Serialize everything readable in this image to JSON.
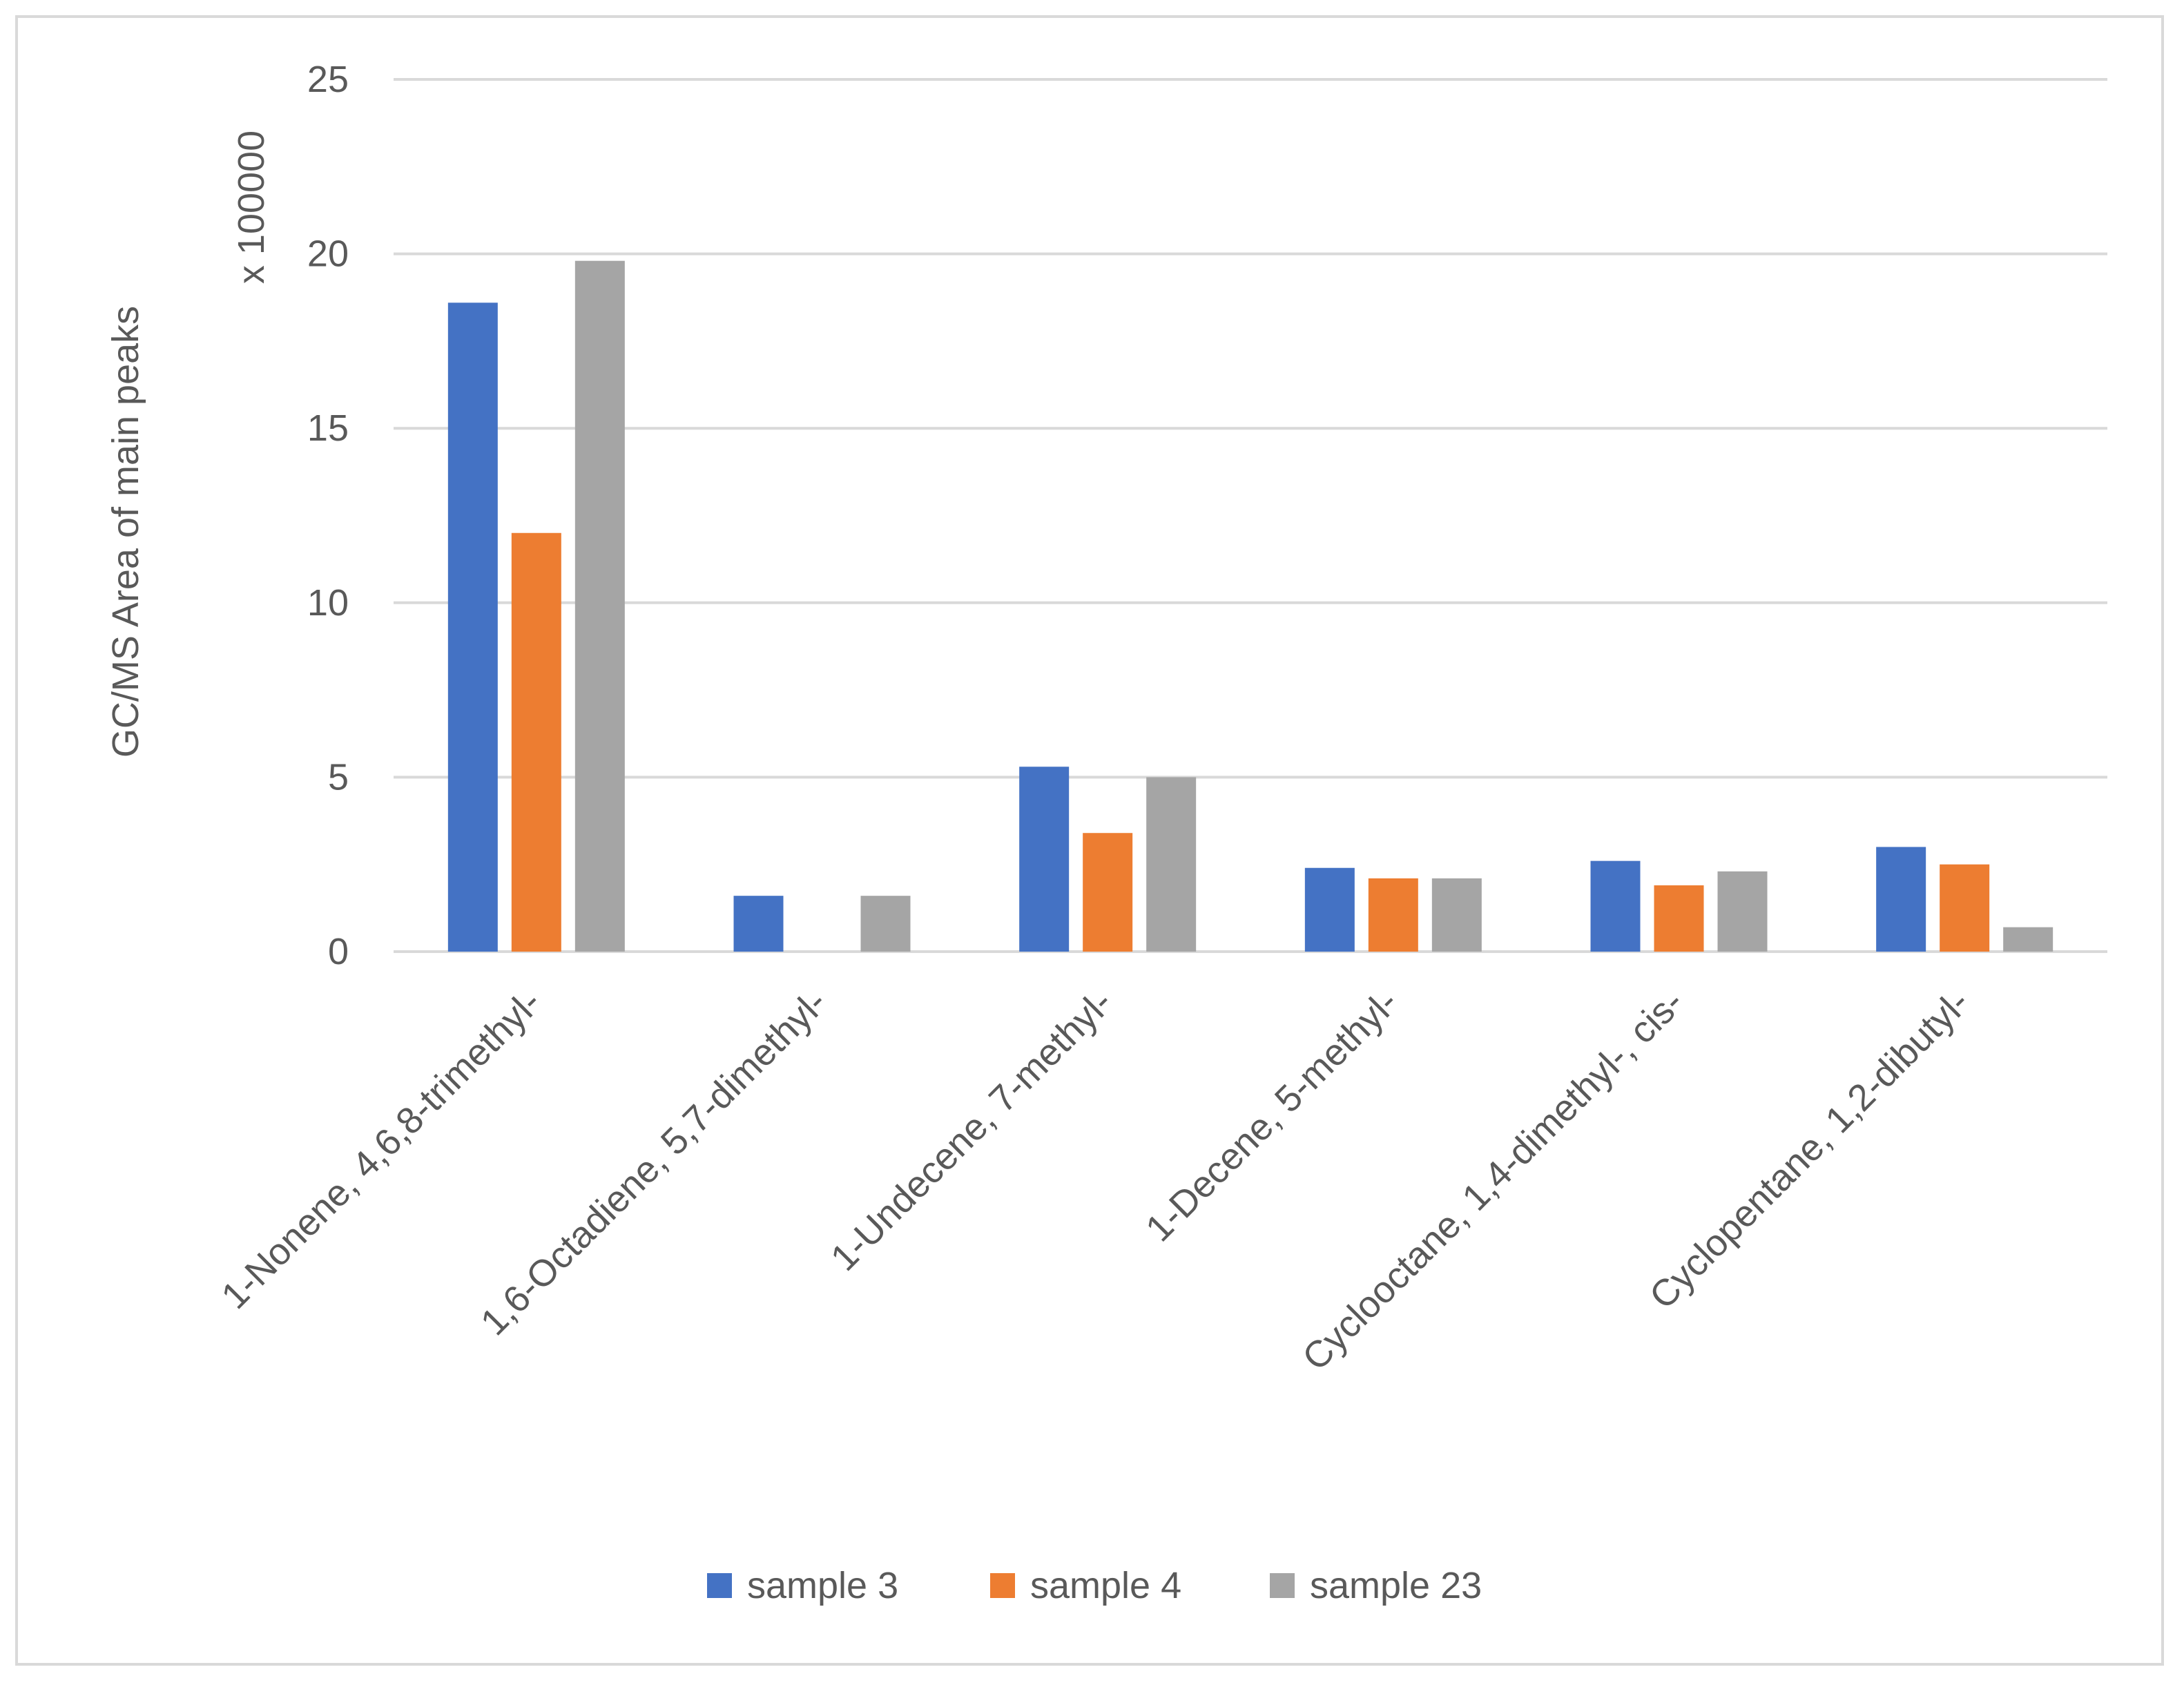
{
  "chart_data": {
    "type": "bar",
    "title": "",
    "xlabel": "",
    "ylabel": "GC/MS Area of main peaks",
    "y_multiplier_label": "x 100000",
    "ylim": [
      0,
      25
    ],
    "yticks": [
      0,
      5,
      10,
      15,
      20,
      25
    ],
    "grid": true,
    "legend_position": "bottom",
    "categories": [
      "1-Nonene, 4,6,8-trimethyl-",
      "1,6-Octadiene, 5,7-dimethyl-",
      "1-Undecene, 7-methyl-",
      "1-Decene, 5-methyl-",
      "Cyclooctane, 1,4-dimethyl-, cis-",
      "Cyclopentane, 1,2-dibutyl-"
    ],
    "series": [
      {
        "name": "sample 3",
        "color": "#4472c4",
        "values": [
          18.6,
          1.6,
          5.3,
          2.4,
          2.6,
          3.0
        ]
      },
      {
        "name": "sample 4",
        "color": "#ed7d31",
        "values": [
          12.0,
          0,
          3.4,
          2.1,
          1.9,
          2.5
        ]
      },
      {
        "name": "sample 23",
        "color": "#a5a5a5",
        "values": [
          19.8,
          1.6,
          5.0,
          2.1,
          2.3,
          0.7
        ]
      }
    ]
  }
}
